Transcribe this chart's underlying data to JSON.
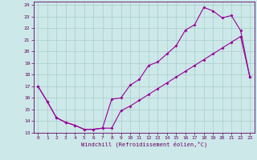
{
  "xlabel": "Windchill (Refroidissement éolien,°C)",
  "xlim_min": -0.5,
  "xlim_max": 23.5,
  "ylim_min": 13,
  "ylim_max": 24.3,
  "xticks": [
    0,
    1,
    2,
    3,
    4,
    5,
    6,
    7,
    8,
    9,
    10,
    11,
    12,
    13,
    14,
    15,
    16,
    17,
    18,
    19,
    20,
    21,
    22,
    23
  ],
  "yticks": [
    13,
    14,
    15,
    16,
    17,
    18,
    19,
    20,
    21,
    22,
    23,
    24
  ],
  "line_color": "#990099",
  "bg_color": "#cce8e8",
  "grid_color": "#aacccc",
  "line1_x": [
    0,
    1,
    2,
    3,
    4,
    5,
    6,
    7,
    8,
    9,
    10,
    11,
    12,
    13,
    14,
    15,
    16,
    17,
    18,
    19,
    20,
    21,
    22,
    23
  ],
  "line1_y": [
    17.0,
    15.7,
    14.3,
    13.9,
    13.65,
    13.3,
    13.3,
    13.4,
    13.4,
    14.9,
    15.3,
    15.8,
    16.3,
    16.8,
    17.3,
    17.8,
    18.3,
    18.8,
    19.3,
    19.8,
    20.3,
    20.8,
    21.3,
    17.8
  ],
  "line2_x": [
    0,
    1,
    2,
    3,
    4,
    5,
    6,
    7,
    8,
    9,
    10,
    11,
    12,
    13,
    14,
    15,
    16,
    17,
    18,
    19,
    20,
    21,
    22,
    23
  ],
  "line2_y": [
    17.0,
    15.7,
    14.3,
    13.9,
    13.65,
    13.3,
    13.3,
    13.4,
    15.9,
    16.0,
    17.1,
    17.6,
    18.8,
    19.1,
    19.8,
    20.5,
    21.85,
    22.3,
    23.8,
    23.5,
    22.9,
    23.1,
    21.8,
    17.8
  ]
}
